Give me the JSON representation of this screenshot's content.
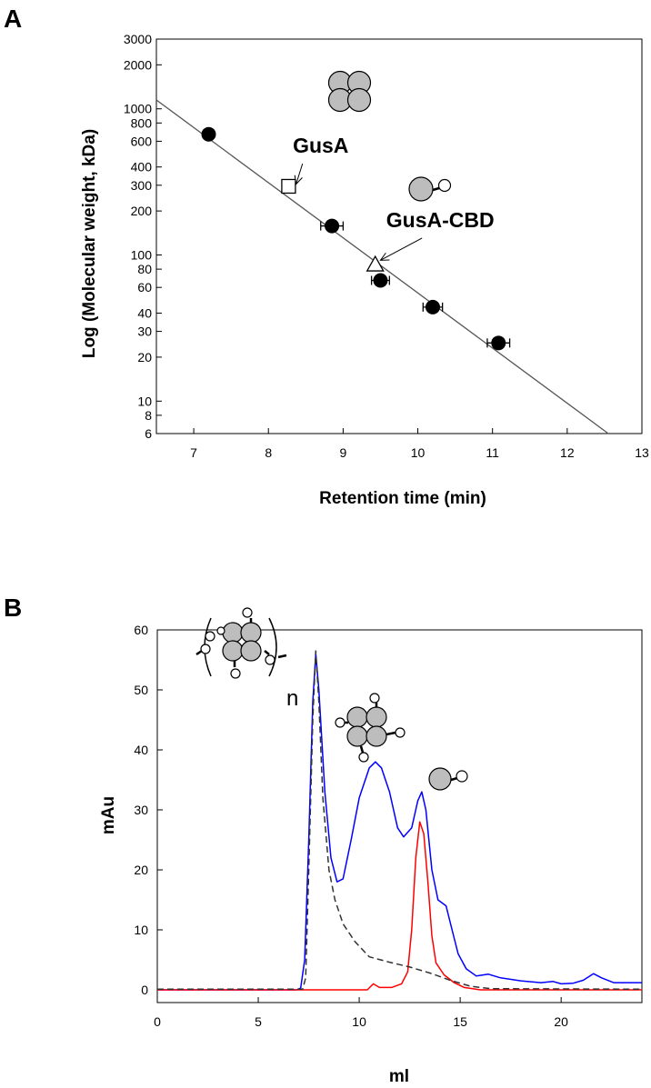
{
  "chart_data": [
    {
      "panel_label": "A",
      "type": "scatter",
      "xlabel": "Retention time (min)",
      "ylabel": "Log (Molecular weight, kDa)",
      "xlim": [
        6.5,
        13
      ],
      "ylim": [
        6,
        3000
      ],
      "y_scale": "log",
      "x_ticks": [
        7,
        8,
        9,
        10,
        11,
        12,
        13
      ],
      "y_ticks": [
        6,
        8,
        10,
        20,
        30,
        40,
        60,
        80,
        100,
        200,
        300,
        400,
        600,
        800,
        1000,
        2000,
        3000
      ],
      "series": [
        {
          "marker": "filled-circle",
          "points": [
            {
              "x": 7.2,
              "y": 670,
              "xerr": 0
            },
            {
              "x": 8.85,
              "y": 158,
              "xerr": 0.15
            },
            {
              "x": 9.5,
              "y": 67,
              "xerr": 0.12
            },
            {
              "x": 10.2,
              "y": 44,
              "xerr": 0.13
            },
            {
              "x": 11.08,
              "y": 25,
              "xerr": 0.15
            }
          ]
        },
        {
          "marker": "open-square",
          "points": [
            {
              "x": 8.27,
              "y": 295
            }
          ]
        },
        {
          "marker": "open-triangle",
          "points": [
            {
              "x": 9.43,
              "y": 86
            }
          ]
        }
      ],
      "fit_line": {
        "x": [
          6.5,
          12.55
        ],
        "y": [
          1150,
          6
        ]
      },
      "annotations": [
        {
          "text": "GusA",
          "x": 8.7,
          "y": 500,
          "arrow_to": {
            "x": 8.37,
            "y": 305
          }
        },
        {
          "text": "GusA-CBD",
          "x": 10.3,
          "y": 155,
          "arrow_to": {
            "x": 9.5,
            "y": 92
          }
        }
      ]
    },
    {
      "panel_label": "B",
      "type": "line",
      "xlabel": "ml",
      "ylabel": "mAu",
      "xlim": [
        0,
        24
      ],
      "ylim": [
        -2,
        60
      ],
      "x_ticks": [
        0,
        5,
        10,
        15,
        20
      ],
      "y_ticks": [
        0,
        10,
        20,
        30,
        40,
        50,
        60
      ],
      "annotations": [
        {
          "text": "n"
        }
      ],
      "series": [
        {
          "color": "#0000ff",
          "style": "solid",
          "points": [
            [
              0,
              0
            ],
            [
              6.9,
              0
            ],
            [
              7.1,
              0.3
            ],
            [
              7.3,
              5
            ],
            [
              7.5,
              25
            ],
            [
              7.7,
              48
            ],
            [
              7.85,
              56
            ],
            [
              8.0,
              50
            ],
            [
              8.3,
              33
            ],
            [
              8.6,
              22
            ],
            [
              8.9,
              18
            ],
            [
              9.2,
              18.5
            ],
            [
              9.6,
              25
            ],
            [
              10.0,
              32
            ],
            [
              10.5,
              37
            ],
            [
              10.8,
              38
            ],
            [
              11.1,
              37
            ],
            [
              11.5,
              33
            ],
            [
              11.9,
              27
            ],
            [
              12.2,
              25.5
            ],
            [
              12.6,
              27
            ],
            [
              12.9,
              31.5
            ],
            [
              13.1,
              33
            ],
            [
              13.3,
              30
            ],
            [
              13.6,
              20
            ],
            [
              13.9,
              15
            ],
            [
              14.3,
              14
            ],
            [
              14.6,
              10
            ],
            [
              14.9,
              6
            ],
            [
              15.3,
              3.5
            ],
            [
              15.8,
              2.3
            ],
            [
              16.4,
              2.6
            ],
            [
              17.0,
              2.0
            ],
            [
              18.0,
              1.5
            ],
            [
              19.0,
              1.2
            ],
            [
              19.6,
              1.4
            ],
            [
              20.0,
              1.0
            ],
            [
              20.6,
              1.1
            ],
            [
              21.1,
              1.6
            ],
            [
              21.6,
              2.7
            ],
            [
              22.0,
              2.0
            ],
            [
              22.6,
              1.2
            ],
            [
              24,
              1.2
            ]
          ]
        },
        {
          "color": "#ff0000",
          "style": "solid",
          "points": [
            [
              0,
              0
            ],
            [
              10.4,
              0
            ],
            [
              10.7,
              1.0
            ],
            [
              11.0,
              0.4
            ],
            [
              11.6,
              0.4
            ],
            [
              12.1,
              1.0
            ],
            [
              12.4,
              3
            ],
            [
              12.6,
              10
            ],
            [
              12.8,
              22
            ],
            [
              13.0,
              28
            ],
            [
              13.2,
              26
            ],
            [
              13.4,
              18
            ],
            [
              13.6,
              9
            ],
            [
              13.8,
              4.5
            ],
            [
              14.2,
              2.5
            ],
            [
              14.7,
              1.2
            ],
            [
              15.2,
              0.4
            ],
            [
              16,
              0
            ],
            [
              24,
              0
            ]
          ]
        },
        {
          "color": "#333333",
          "style": "dashed",
          "points": [
            [
              0,
              0.1
            ],
            [
              7.2,
              0.1
            ],
            [
              7.35,
              2
            ],
            [
              7.5,
              20
            ],
            [
              7.7,
              45
            ],
            [
              7.85,
              56.5
            ],
            [
              8.0,
              48
            ],
            [
              8.2,
              32
            ],
            [
              8.5,
              20
            ],
            [
              8.8,
              15
            ],
            [
              9.2,
              11
            ],
            [
              9.8,
              8
            ],
            [
              10.5,
              5.5
            ],
            [
              11.5,
              4.6
            ],
            [
              12.5,
              3.8
            ],
            [
              13.5,
              2.8
            ],
            [
              14.5,
              1.6
            ],
            [
              15.5,
              0.6
            ],
            [
              16.5,
              0.2
            ],
            [
              24,
              0.1
            ]
          ]
        }
      ]
    }
  ]
}
